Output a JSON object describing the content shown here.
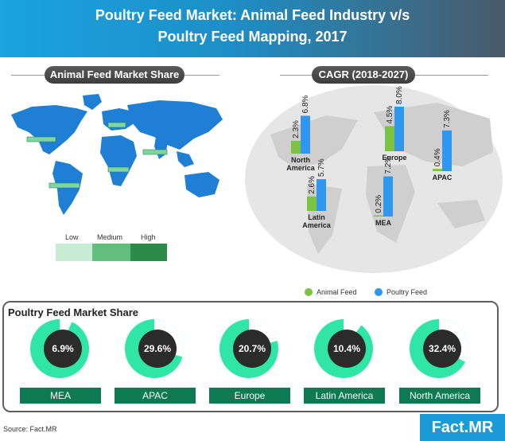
{
  "header": {
    "title_line1": "Poultry Feed Market: Animal Feed Industry v/s",
    "title_line2": "Poultry Feed Mapping, 2017"
  },
  "left_panel": {
    "title": "Animal Feed Market Share"
  },
  "right_panel": {
    "title": "CAGR (2018-2027)"
  },
  "map_legend": {
    "low": "Low",
    "medium": "Medium",
    "high": "High"
  },
  "cagr_legend": {
    "animal": "Animal Feed",
    "poultry": "Poultry Feed"
  },
  "pf_panel": {
    "title": "Poultry Feed Market Share"
  },
  "footer": {
    "source": "Source: Fact.MR",
    "brand": "Fact.MR"
  },
  "colors": {
    "header_blue": "#1aa3e0",
    "animal_green": "#7dc243",
    "poultry_blue": "#2f98ee",
    "donut_green": "#2fe6a6",
    "donut_center": "#2b2b2b",
    "region_green": "#0d7a53",
    "map_blue": "#1f7fd4"
  },
  "chart_data": [
    {
      "type": "bar",
      "title": "CAGR (2018-2027)",
      "unit": "%",
      "categories": [
        "North America",
        "Europe",
        "APAC",
        "Latin America",
        "MEA"
      ],
      "category_labels": [
        [
          "North",
          "America"
        ],
        [
          "Europe"
        ],
        [
          "APAC"
        ],
        [
          "Latin",
          "America"
        ],
        [
          "MEA"
        ]
      ],
      "series": [
        {
          "name": "Animal Feed",
          "values": [
            2.3,
            4.5,
            0.4,
            2.6,
            0.2
          ],
          "labels": [
            "2.3%",
            "4.5%",
            "0.4%",
            "2.6%",
            "0.2%"
          ]
        },
        {
          "name": "Poultry Feed",
          "values": [
            6.8,
            8.0,
            7.3,
            5.7,
            7.2
          ],
          "labels": [
            "6.8%",
            "8.0%",
            "7.3%",
            "5.7%",
            "7.2%"
          ]
        }
      ]
    },
    {
      "type": "pie",
      "title": "Poultry Feed Market Share",
      "categories": [
        "MEA",
        "APAC",
        "Europe",
        "Latin America",
        "North America"
      ],
      "values": [
        6.9,
        29.6,
        20.7,
        10.4,
        32.4
      ],
      "labels": [
        "6.9%",
        "29.6%",
        "20.7%",
        "10.4%",
        "32.4%"
      ]
    }
  ]
}
